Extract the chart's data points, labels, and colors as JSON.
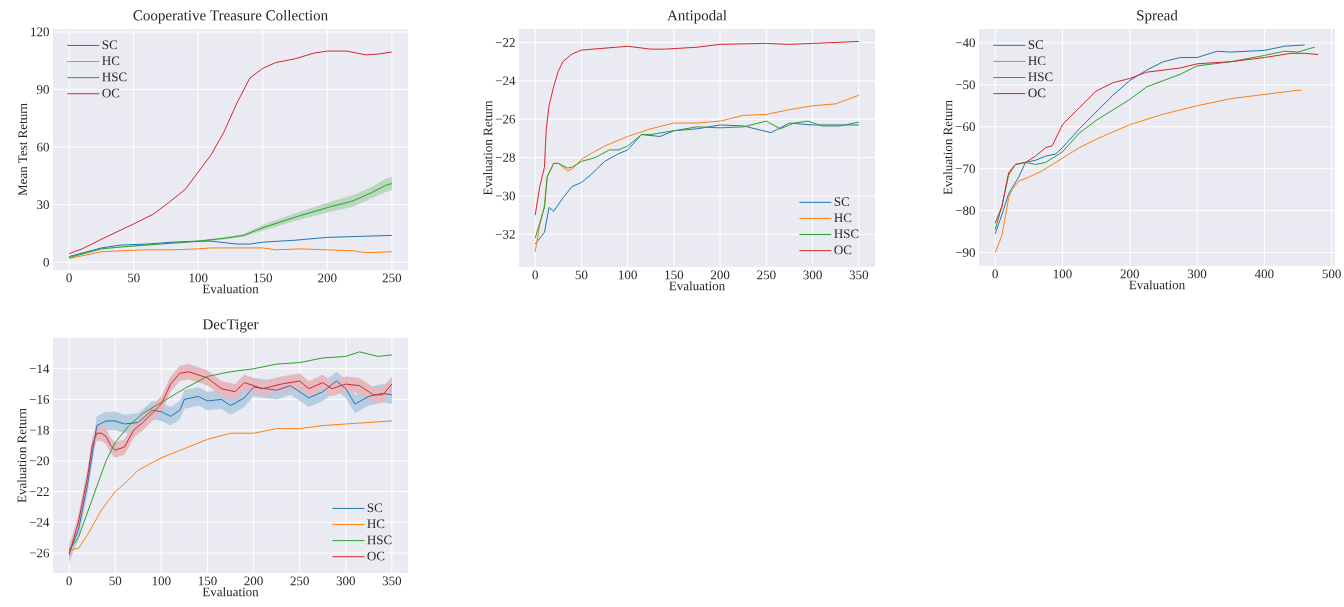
{
  "chart_data": [
    {
      "type": "line",
      "title": "Cooperative Treasure Collection",
      "xlabel": "Evaluation",
      "ylabel": "Mean Test Return",
      "xlim": [
        -12.5,
        262.5
      ],
      "ylim": [
        -4,
        121.5
      ],
      "xticks": [
        0,
        50,
        100,
        150,
        200,
        250
      ],
      "yticks": [
        0,
        30,
        60,
        90,
        120
      ],
      "grid": true,
      "legend": "top left",
      "marker": "none",
      "line_style": "solid",
      "series": [
        {
          "name": "SC",
          "color": "#1f77b4",
          "x": [
            0,
            25,
            40,
            60,
            80,
            100,
            110,
            130,
            140,
            150,
            175,
            200,
            225,
            250
          ],
          "values": [
            3,
            7.5,
            9,
            9.5,
            10.5,
            11,
            11,
            9.5,
            9.5,
            10.5,
            11.5,
            13,
            13.5,
            14
          ]
        },
        {
          "name": "HC",
          "color": "#ff7f0e",
          "x": [
            0,
            25,
            40,
            60,
            80,
            100,
            110,
            140,
            150,
            160,
            180,
            200,
            220,
            230,
            250
          ],
          "values": [
            2,
            5.5,
            6,
            6.5,
            6.5,
            7,
            7.5,
            7.5,
            7.5,
            6.5,
            7,
            6.5,
            6,
            5,
            5.5
          ]
        },
        {
          "name": "HSC",
          "color": "#2ca02c",
          "x": [
            0,
            25,
            40,
            60,
            80,
            100,
            120,
            135,
            150,
            175,
            200,
            220,
            235,
            245,
            250
          ],
          "values": [
            2.5,
            7,
            8,
            9,
            10,
            11,
            12.5,
            14,
            18,
            23.5,
            28.5,
            32,
            36.5,
            40,
            41
          ],
          "lower": [
            2.2,
            6.7,
            7.7,
            8.6,
            9.6,
            10.5,
            11.9,
            13.2,
            16.5,
            21.5,
            26,
            29,
            33.5,
            36.5,
            37.5
          ],
          "upper": [
            2.8,
            7.3,
            8.3,
            9.4,
            10.4,
            11.5,
            13.1,
            14.8,
            19.5,
            25.5,
            31,
            35,
            39.5,
            43.5,
            44.5
          ]
        },
        {
          "name": "OC",
          "color": "#d62728",
          "x": [
            0,
            10,
            25,
            50,
            65,
            75,
            90,
            100,
            110,
            120,
            130,
            140,
            150,
            160,
            175,
            190,
            200,
            215,
            230,
            240,
            250
          ],
          "values": [
            4.5,
            7,
            12,
            20,
            25,
            30,
            38,
            47,
            56,
            68,
            83,
            96,
            101,
            104,
            106,
            109,
            110,
            110,
            108,
            108.5,
            109.5
          ]
        }
      ]
    },
    {
      "type": "line",
      "title": "Antipodal",
      "xlabel": "Evaluation",
      "ylabel": "Evaluation Return",
      "xlim": [
        -17.5,
        367.5
      ],
      "ylim": [
        -33.7,
        -21.3
      ],
      "xticks": [
        0,
        50,
        100,
        150,
        200,
        250,
        300,
        350
      ],
      "yticks": [
        {
          "value": -32,
          "label": "−32"
        },
        {
          "value": -30,
          "label": "−30"
        },
        {
          "value": -28,
          "label": "−28"
        },
        {
          "value": -26,
          "label": "−26"
        },
        {
          "value": -24,
          "label": "−24"
        },
        {
          "value": -22,
          "label": "−22"
        }
      ],
      "grid": true,
      "legend": "bottom right",
      "marker": "none",
      "line_style": "solid",
      "series": [
        {
          "name": "SC",
          "color": "#1f77b4",
          "x": [
            0,
            10,
            15,
            20,
            30,
            40,
            50,
            60,
            75,
            90,
            100,
            115,
            125,
            135,
            150,
            175,
            200,
            225,
            255,
            275,
            300,
            325,
            350
          ],
          "values": [
            -32.5,
            -31.9,
            -30.6,
            -30.8,
            -30.1,
            -29.5,
            -29.3,
            -28.9,
            -28.2,
            -27.8,
            -27.6,
            -26.8,
            -26.85,
            -26.9,
            -26.6,
            -26.5,
            -26.3,
            -26.35,
            -26.7,
            -26.2,
            -26.3,
            -26.3,
            -26.3
          ]
        },
        {
          "name": "HC",
          "color": "#ff7f0e",
          "x": [
            0,
            5,
            10,
            13,
            20,
            25,
            35,
            40,
            50,
            60,
            75,
            100,
            125,
            150,
            175,
            200,
            225,
            250,
            275,
            300,
            325,
            350
          ],
          "values": [
            -32.9,
            -31.5,
            -30.5,
            -29,
            -28.3,
            -28.3,
            -28.7,
            -28.6,
            -28.1,
            -27.8,
            -27.4,
            -26.9,
            -26.5,
            -26.2,
            -26.2,
            -26.1,
            -25.8,
            -25.75,
            -25.5,
            -25.3,
            -25.2,
            -24.75
          ]
        },
        {
          "name": "HSC",
          "color": "#2ca02c",
          "x": [
            0,
            10,
            13,
            20,
            25,
            35,
            40,
            50,
            65,
            80,
            90,
            100,
            115,
            125,
            150,
            175,
            200,
            225,
            250,
            265,
            280,
            295,
            310,
            330,
            350
          ],
          "values": [
            -32.2,
            -30.6,
            -29,
            -28.3,
            -28.3,
            -28.55,
            -28.5,
            -28.2,
            -28,
            -27.6,
            -27.6,
            -27.4,
            -26.8,
            -26.8,
            -26.6,
            -26.4,
            -26.45,
            -26.4,
            -26.1,
            -26.5,
            -26.2,
            -26.1,
            -26.35,
            -26.35,
            -26.15
          ]
        },
        {
          "name": "OC",
          "color": "#d62728",
          "x": [
            0,
            5,
            10,
            12,
            15,
            20,
            25,
            30,
            40,
            50,
            75,
            100,
            125,
            140,
            175,
            200,
            250,
            275,
            300,
            350
          ],
          "values": [
            -31,
            -29.5,
            -28.5,
            -26.5,
            -25.3,
            -24.3,
            -23.5,
            -23,
            -22.6,
            -22.4,
            -22.3,
            -22.2,
            -22.35,
            -22.35,
            -22.25,
            -22.1,
            -22.05,
            -22.1,
            -22.05,
            -21.95
          ]
        }
      ]
    },
    {
      "type": "line",
      "title": "Spread",
      "xlabel": "Evaluation",
      "ylabel": "Evaluation Return",
      "xlim": [
        -24,
        505
      ],
      "ylim": [
        -93.2,
        -36.7
      ],
      "xticks": [
        0,
        100,
        200,
        300,
        400,
        500
      ],
      "yticks": [
        {
          "value": -90,
          "label": "−90"
        },
        {
          "value": -80,
          "label": "−80"
        },
        {
          "value": -70,
          "label": "−70"
        },
        {
          "value": -60,
          "label": "−60"
        },
        {
          "value": -50,
          "label": "−50"
        },
        {
          "value": -40,
          "label": "−40"
        }
      ],
      "grid": true,
      "legend": "top left",
      "marker": "none",
      "line_style": "solid",
      "series": [
        {
          "name": "SC",
          "color": "#1f77b4",
          "x": [
            0,
            10,
            20,
            35,
            45,
            60,
            75,
            90,
            100,
            125,
            150,
            175,
            200,
            225,
            250,
            275,
            300,
            330,
            350,
            400,
            430,
            460
          ],
          "values": [
            -85.5,
            -81,
            -76,
            -72,
            -68.5,
            -68,
            -67,
            -66.5,
            -65,
            -60.5,
            -56.5,
            -52.5,
            -49,
            -46.5,
            -44.5,
            -43.5,
            -43.5,
            -42,
            -42.2,
            -41.8,
            -40.8,
            -40.5
          ]
        },
        {
          "name": "HC",
          "color": "#ff7f0e",
          "x": [
            0,
            10,
            20,
            25,
            35,
            50,
            70,
            100,
            125,
            150,
            200,
            250,
            300,
            350,
            400,
            450,
            455
          ],
          "values": [
            -90,
            -86,
            -77,
            -75,
            -73,
            -72,
            -70.5,
            -67.5,
            -65,
            -63,
            -59.5,
            -57,
            -55,
            -53.3,
            -52.3,
            -51.3,
            -51.3
          ]
        },
        {
          "name": "HSC",
          "color": "#2ca02c",
          "x": [
            0,
            10,
            20,
            30,
            45,
            60,
            75,
            100,
            125,
            150,
            175,
            200,
            225,
            250,
            275,
            300,
            350,
            400,
            430,
            450,
            475
          ],
          "values": [
            -84.5,
            -79,
            -71.5,
            -69,
            -68.5,
            -69,
            -68.5,
            -66,
            -61.5,
            -58.5,
            -56,
            -53.5,
            -50.5,
            -49,
            -47.5,
            -45.5,
            -44.5,
            -43,
            -42,
            -42.2,
            -41
          ]
        },
        {
          "name": "OC",
          "color": "#d62728",
          "x": [
            0,
            10,
            20,
            30,
            45,
            60,
            75,
            85,
            100,
            125,
            150,
            175,
            200,
            225,
            250,
            275,
            300,
            350,
            400,
            440,
            460,
            480
          ],
          "values": [
            -83,
            -79,
            -71,
            -69,
            -68.5,
            -67,
            -65,
            -64.5,
            -59.5,
            -55.5,
            -51.5,
            -49.5,
            -48.5,
            -47,
            -46.5,
            -46,
            -45,
            -44.5,
            -43.5,
            -42.5,
            -42.5,
            -42.8
          ]
        }
      ]
    },
    {
      "type": "line",
      "title": "DecTiger",
      "xlabel": "Evaluation",
      "ylabel": "Evaluation Return",
      "xlim": [
        -17.5,
        367.5
      ],
      "ylim": [
        -27.3,
        -12
      ],
      "xticks": [
        0,
        50,
        100,
        150,
        200,
        250,
        300,
        350
      ],
      "yticks": [
        {
          "value": -26,
          "label": "−26"
        },
        {
          "value": -24,
          "label": "−24"
        },
        {
          "value": -22,
          "label": "−22"
        },
        {
          "value": -20,
          "label": "−20"
        },
        {
          "value": -18,
          "label": "−18"
        },
        {
          "value": -16,
          "label": "−16"
        },
        {
          "value": -14,
          "label": "−14"
        }
      ],
      "grid": true,
      "legend": "bottom right",
      "marker": "none",
      "line_style": "solid",
      "series": [
        {
          "name": "SC",
          "color": "#1f77b4",
          "x": [
            0,
            10,
            20,
            30,
            40,
            50,
            60,
            75,
            90,
            100,
            110,
            120,
            125,
            140,
            150,
            165,
            175,
            190,
            200,
            225,
            240,
            260,
            275,
            290,
            300,
            310,
            325,
            340,
            350
          ],
          "values": [
            -26,
            -24.5,
            -21.5,
            -17.7,
            -17.4,
            -17.4,
            -17.6,
            -17.5,
            -16.7,
            -16.8,
            -17.1,
            -16.7,
            -16,
            -15.8,
            -16.1,
            -16,
            -16.4,
            -15.9,
            -15.2,
            -15.4,
            -15.1,
            -15.9,
            -15.5,
            -14.8,
            -15.3,
            -16.3,
            -15.8,
            -15.6,
            -15.7
          ],
          "lower": [
            -26.6,
            -25.1,
            -22.1,
            -18.3,
            -18,
            -18,
            -18.2,
            -18.1,
            -17.3,
            -17.4,
            -17.7,
            -17.3,
            -16.6,
            -16.4,
            -16.7,
            -16.6,
            -17,
            -16.5,
            -15.8,
            -16,
            -15.7,
            -16.5,
            -16.1,
            -15.4,
            -15.9,
            -16.9,
            -16.4,
            -16.2,
            -16.3
          ],
          "upper": [
            -25.4,
            -23.9,
            -20.9,
            -17.1,
            -16.8,
            -16.8,
            -17,
            -16.9,
            -16.1,
            -16.2,
            -16.5,
            -16.1,
            -15.4,
            -15.2,
            -15.5,
            -15.4,
            -15.8,
            -15.3,
            -14.6,
            -14.8,
            -14.5,
            -15.3,
            -14.9,
            -14.2,
            -14.7,
            -15.7,
            -15.2,
            -15,
            -15.1
          ]
        },
        {
          "name": "HC",
          "color": "#ff7f0e",
          "x": [
            0,
            10,
            20,
            35,
            50,
            60,
            75,
            100,
            125,
            150,
            175,
            200,
            225,
            250,
            275,
            300,
            325,
            350
          ],
          "values": [
            -25.8,
            -25.7,
            -24.8,
            -23.2,
            -22,
            -21.5,
            -20.6,
            -19.8,
            -19.2,
            -18.6,
            -18.2,
            -18.2,
            -17.9,
            -17.9,
            -17.7,
            -17.6,
            -17.5,
            -17.4
          ]
        },
        {
          "name": "HSC",
          "color": "#2ca02c",
          "x": [
            0,
            10,
            25,
            40,
            50,
            65,
            80,
            100,
            125,
            150,
            175,
            200,
            225,
            250,
            275,
            300,
            315,
            335,
            350
          ],
          "values": [
            -25.8,
            -25,
            -22.5,
            -20,
            -18.8,
            -17.7,
            -16.9,
            -16.2,
            -15.3,
            -14.5,
            -14.2,
            -14,
            -13.7,
            -13.6,
            -13.3,
            -13.2,
            -12.9,
            -13.2,
            -13.1
          ]
        },
        {
          "name": "OC",
          "color": "#d62728",
          "x": [
            0,
            10,
            20,
            25,
            30,
            35,
            40,
            45,
            50,
            60,
            70,
            80,
            100,
            110,
            120,
            130,
            140,
            150,
            165,
            180,
            190,
            210,
            230,
            250,
            260,
            275,
            285,
            300,
            315,
            330,
            340,
            350
          ],
          "values": [
            -26.1,
            -24,
            -21,
            -19,
            -18.2,
            -18.2,
            -18.4,
            -19,
            -19.3,
            -19.1,
            -18,
            -17.5,
            -16.3,
            -15,
            -14.3,
            -14.2,
            -14.4,
            -14.6,
            -15.3,
            -15.5,
            -14.9,
            -15.3,
            -15,
            -14.8,
            -15.3,
            -14.9,
            -15.3,
            -15,
            -15.1,
            -15.7,
            -15.7,
            -15
          ],
          "lower": [
            -26.6,
            -24.5,
            -21.5,
            -19.5,
            -18.7,
            -18.7,
            -18.9,
            -19.5,
            -19.8,
            -19.6,
            -18.5,
            -18,
            -16.8,
            -15.5,
            -14.8,
            -14.7,
            -14.9,
            -15.1,
            -15.8,
            -16,
            -15.4,
            -15.8,
            -15.5,
            -15.3,
            -15.8,
            -15.4,
            -15.8,
            -15.5,
            -15.6,
            -16.2,
            -16.2,
            -15.5
          ],
          "upper": [
            -25.6,
            -23.5,
            -20.5,
            -18.5,
            -17.7,
            -17.7,
            -17.9,
            -18.5,
            -18.8,
            -18.6,
            -17.5,
            -17,
            -15.8,
            -14.5,
            -13.8,
            -13.7,
            -13.9,
            -14.1,
            -14.8,
            -15,
            -14.4,
            -14.8,
            -14.5,
            -14.3,
            -14.8,
            -14.4,
            -14.8,
            -14.5,
            -14.6,
            -15.2,
            -15.2,
            -14.5
          ]
        }
      ]
    }
  ]
}
